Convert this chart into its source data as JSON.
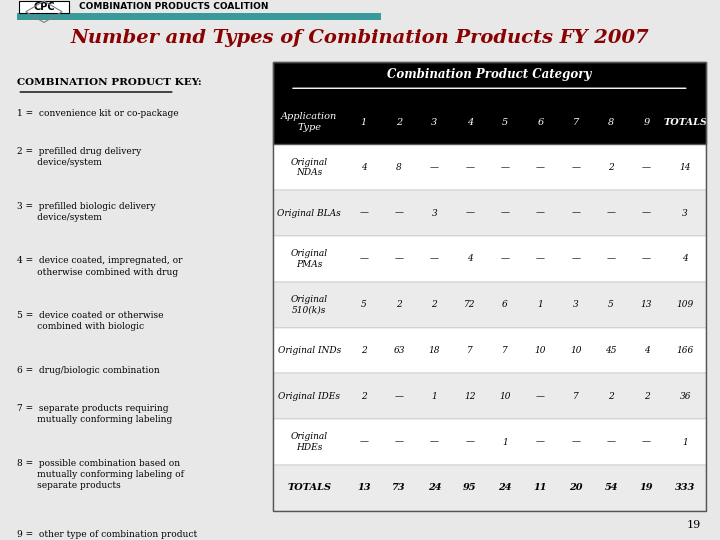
{
  "title": "Number and Types of Combination Products FY 2007",
  "title_color": "#8B0000",
  "bg_color": "#e8e8e8",
  "key_title": "COMBINATION PRODUCT KEY:",
  "key_items": [
    "1 =  convenience kit or co-package",
    "2 =  prefilled drug delivery\n       device/system",
    "3 =  prefilled biologic delivery\n       device/system",
    "4 =  device coated, impregnated, or\n       otherwise combined with drug",
    "5 =  device coated or otherwise\n       combined with biologic",
    "6 =  drug/biologic combination",
    "7 =  separate products requiring\n       mutually conforming labeling",
    "8 =  possible combination based on\n       mutually conforming labeling of\n       separate products",
    "9 =  other type of combination product"
  ],
  "table_header_bg": "#000000",
  "table_header_text": "#ffffff",
  "col_header": "Combination Product Category",
  "rows": [
    {
      "label": "Original\nNDAs",
      "values": [
        "4",
        "8",
        "—",
        "—",
        "—",
        "—",
        "—",
        "2",
        "—",
        "14"
      ]
    },
    {
      "label": "Original BLAs",
      "values": [
        "—",
        "—",
        "3",
        "—",
        "—",
        "—",
        "—",
        "—",
        "—",
        "3"
      ]
    },
    {
      "label": "Original\nPMAs",
      "values": [
        "—",
        "—",
        "—",
        "4",
        "—",
        "—",
        "—",
        "—",
        "—",
        "4"
      ]
    },
    {
      "label": "Original\n510(k)s",
      "values": [
        "5",
        "2",
        "2",
        "72",
        "6",
        "1",
        "3",
        "5",
        "13",
        "109"
      ]
    },
    {
      "label": "Original INDs",
      "values": [
        "2",
        "63",
        "18",
        "7",
        "7",
        "10",
        "10",
        "45",
        "4",
        "166"
      ]
    },
    {
      "label": "Original IDEs",
      "values": [
        "2",
        "—",
        "1",
        "12",
        "10",
        "—",
        "7",
        "2",
        "2",
        "36"
      ]
    },
    {
      "label": "Original\nHDEs",
      "values": [
        "—",
        "—",
        "—",
        "—",
        "1",
        "—",
        "—",
        "—",
        "—",
        "1"
      ]
    },
    {
      "label": "TOTALS",
      "values": [
        "13",
        "73",
        "24",
        "95",
        "24",
        "11",
        "20",
        "54",
        "19",
        "333"
      ]
    }
  ],
  "page_num": "19"
}
